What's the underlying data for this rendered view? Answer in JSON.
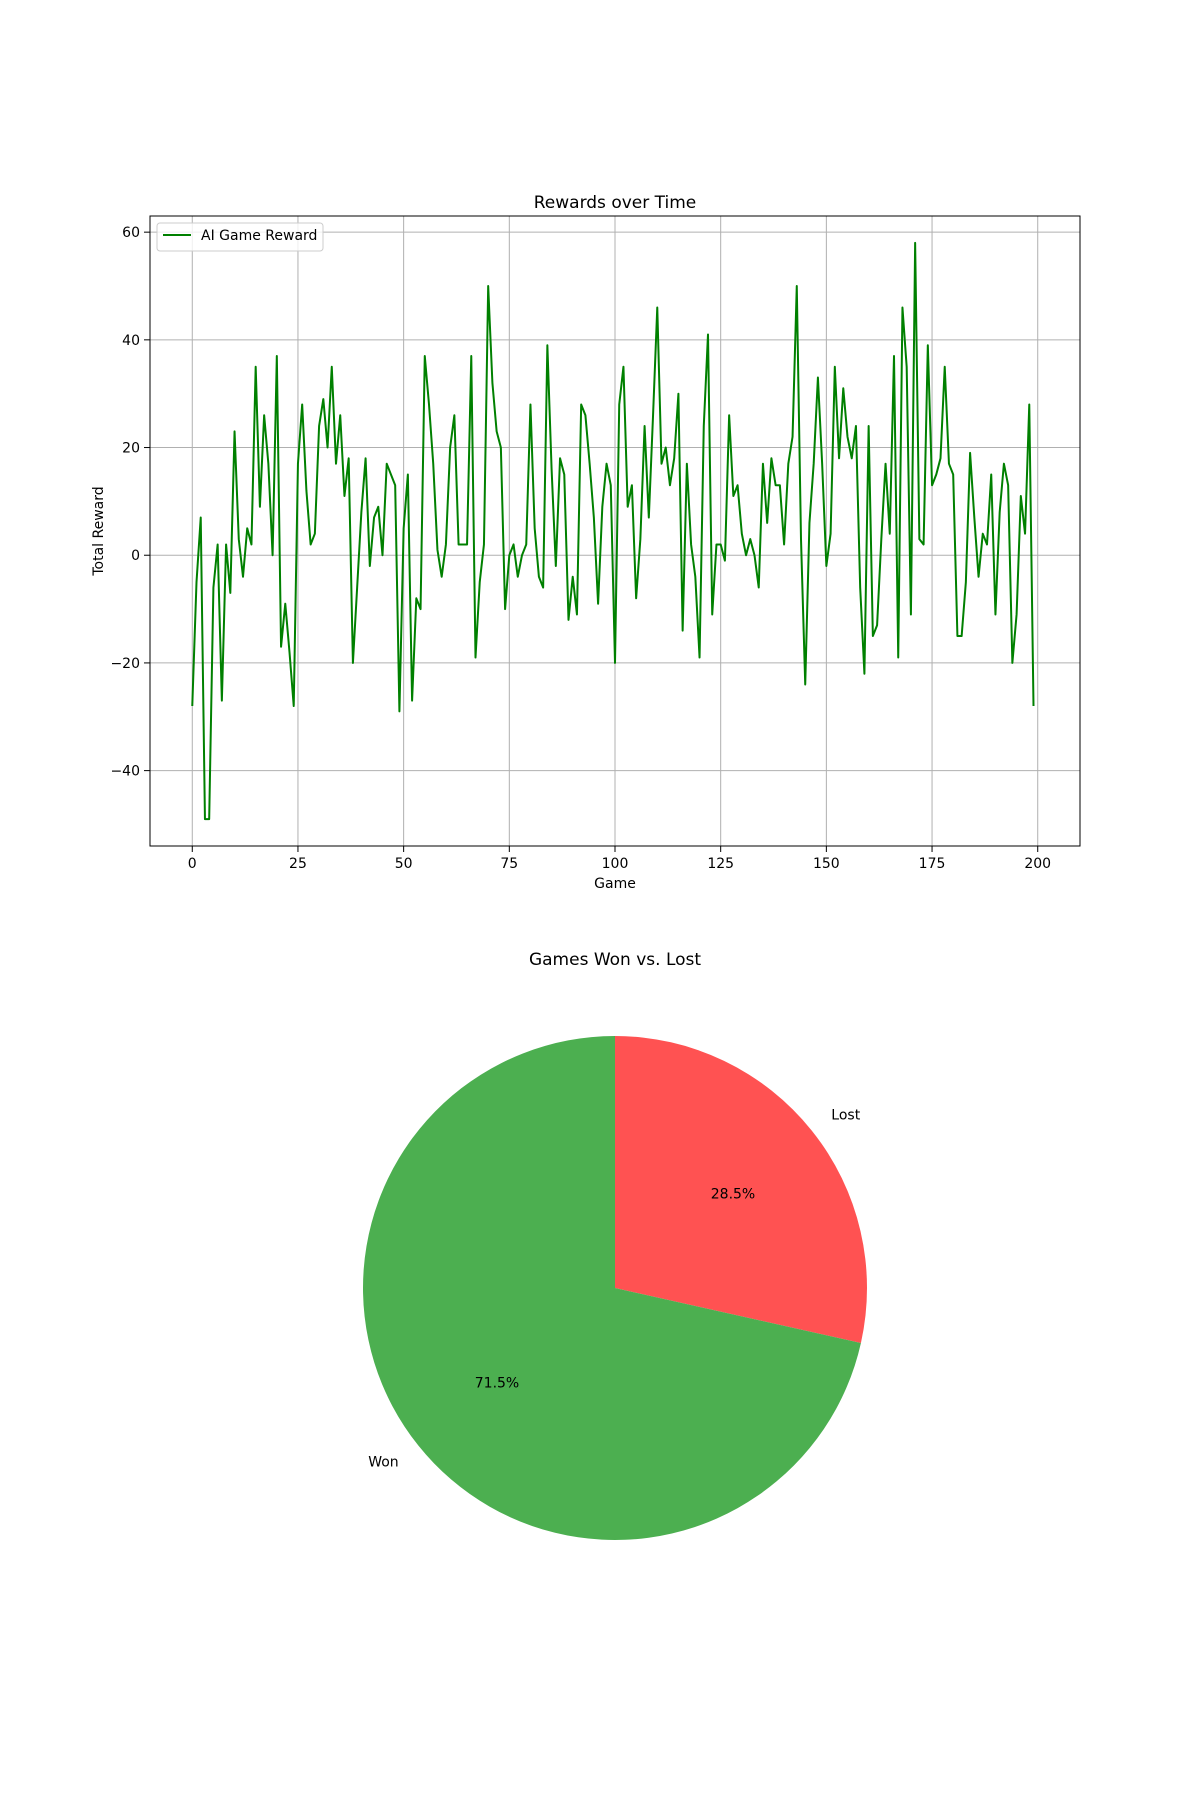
{
  "chart_data": [
    {
      "type": "line",
      "title": "Rewards over Time",
      "xlabel": "Game",
      "ylabel": "Total Reward",
      "xlim": [
        -10,
        210
      ],
      "ylim": [
        -54,
        63
      ],
      "xticks": [
        0,
        25,
        50,
        75,
        100,
        125,
        150,
        175,
        200
      ],
      "yticks": [
        -40,
        -20,
        0,
        20,
        40,
        60
      ],
      "xtick_labels": [
        "0",
        "25",
        "50",
        "75",
        "100",
        "125",
        "150",
        "175",
        "200"
      ],
      "ytick_labels": [
        "−40",
        "−20",
        "0",
        "20",
        "40",
        "60"
      ],
      "grid": true,
      "legend": "top-left",
      "series": [
        {
          "name": "AI Game Reward",
          "color": "#008000",
          "y": [
            -28,
            -5,
            7,
            -49,
            -49,
            -6,
            2,
            -27,
            2,
            -7,
            23,
            3,
            -4,
            5,
            2,
            35,
            9,
            26,
            17,
            0,
            37,
            -17,
            -9,
            -18,
            -28,
            17,
            28,
            12,
            2,
            4,
            24,
            29,
            20,
            35,
            17,
            26,
            11,
            18,
            -20,
            -6,
            8,
            18,
            -2,
            7,
            9,
            0,
            17,
            15,
            13,
            -29,
            5,
            15,
            -27,
            -8,
            -10,
            37,
            28,
            17,
            1,
            -4,
            2,
            20,
            26,
            2,
            2,
            2,
            37,
            -19,
            -5,
            2,
            50,
            32,
            23,
            20,
            -10,
            0,
            2,
            -4,
            0,
            2,
            28,
            5,
            -4,
            -6,
            39,
            16,
            -2,
            18,
            15,
            -12,
            -4,
            -11,
            28,
            26,
            17,
            7,
            -9,
            9,
            17,
            13,
            -20,
            28,
            35,
            9,
            13,
            -8,
            3,
            24,
            7,
            26,
            46,
            17,
            20,
            13,
            18,
            30,
            -14,
            17,
            2,
            -4,
            -19,
            24,
            41,
            -11,
            2,
            2,
            -1,
            26,
            11,
            13,
            4,
            0,
            3,
            0,
            -6,
            17,
            6,
            18,
            13,
            13,
            2,
            17,
            22,
            50,
            3,
            -24,
            6,
            17,
            33,
            17,
            -2,
            4,
            35,
            18,
            31,
            22,
            18,
            24,
            -6,
            -22,
            24,
            -15,
            -13,
            3,
            17,
            4,
            37,
            -19,
            46,
            35,
            -11,
            58,
            3,
            2,
            39,
            13,
            15,
            18,
            35,
            17,
            15,
            -15,
            -15,
            -5,
            19,
            7,
            -4,
            4,
            2,
            15,
            -11,
            8,
            17,
            13,
            -20,
            -11,
            11,
            4,
            28,
            -28
          ]
        }
      ]
    },
    {
      "type": "pie",
      "title": "Games Won vs. Lost",
      "labels": [
        "Lost",
        "Won"
      ],
      "values": [
        28.5,
        71.5
      ],
      "value_labels": [
        "28.5%",
        "71.5%"
      ],
      "colors": [
        "#ff5252",
        "#4caf50"
      ],
      "start_angle_deg": 90,
      "direction": "clockwise"
    }
  ]
}
